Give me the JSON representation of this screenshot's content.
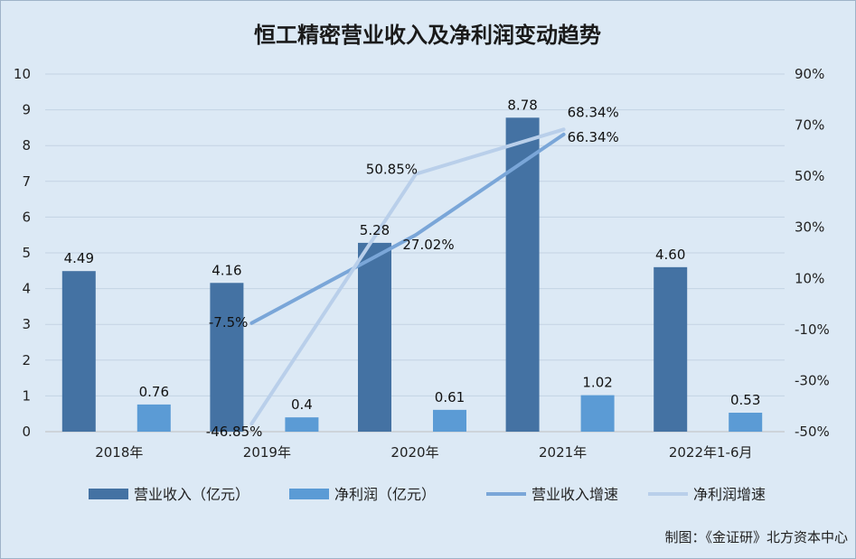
{
  "chart_data": {
    "type": "bar",
    "title": "恒工精密营业收入及净利润变动趋势",
    "categories": [
      "2018年",
      "2019年",
      "2020年",
      "2021年",
      "2022年1-6月"
    ],
    "series": [
      {
        "name": "营业收入（亿元）",
        "kind": "bar",
        "axis": "left",
        "color": "#4472a3",
        "values": [
          4.49,
          4.16,
          5.28,
          8.78,
          4.6
        ],
        "labels": [
          "4.49",
          "4.16",
          "5.28",
          "8.78",
          "4.60"
        ]
      },
      {
        "name": "净利润（亿元）",
        "kind": "bar",
        "axis": "left",
        "color": "#5b9bd5",
        "values": [
          0.76,
          0.4,
          0.61,
          1.02,
          0.53
        ],
        "labels": [
          "0.76",
          "0.4",
          "0.61",
          "1.02",
          "0.53"
        ]
      },
      {
        "name": "营业收入增速",
        "kind": "line",
        "axis": "right",
        "color": "#7aa6d8",
        "values": [
          null,
          -7.5,
          27.02,
          66.34,
          null
        ],
        "labels": [
          "",
          "-7.5%",
          "27.02%",
          "66.34%",
          ""
        ]
      },
      {
        "name": "净利润增速",
        "kind": "line",
        "axis": "right",
        "color": "#b9cfea",
        "values": [
          null,
          -46.85,
          50.85,
          68.34,
          null
        ],
        "labels": [
          "",
          "-46.85%",
          "50.85%",
          "68.34%",
          ""
        ]
      }
    ],
    "y_left": {
      "min": 0,
      "max": 10,
      "ticks": [
        "0",
        "1",
        "2",
        "3",
        "4",
        "5",
        "6",
        "7",
        "8",
        "9",
        "10"
      ]
    },
    "y_right": {
      "min": -50,
      "max": 90,
      "ticks": [
        "-50%",
        "-30%",
        "-10%",
        "10%",
        "30%",
        "50%",
        "70%",
        "90%"
      ]
    },
    "grid": true,
    "legend_position": "bottom"
  },
  "source": "制图：《金证研》北方资本中心"
}
